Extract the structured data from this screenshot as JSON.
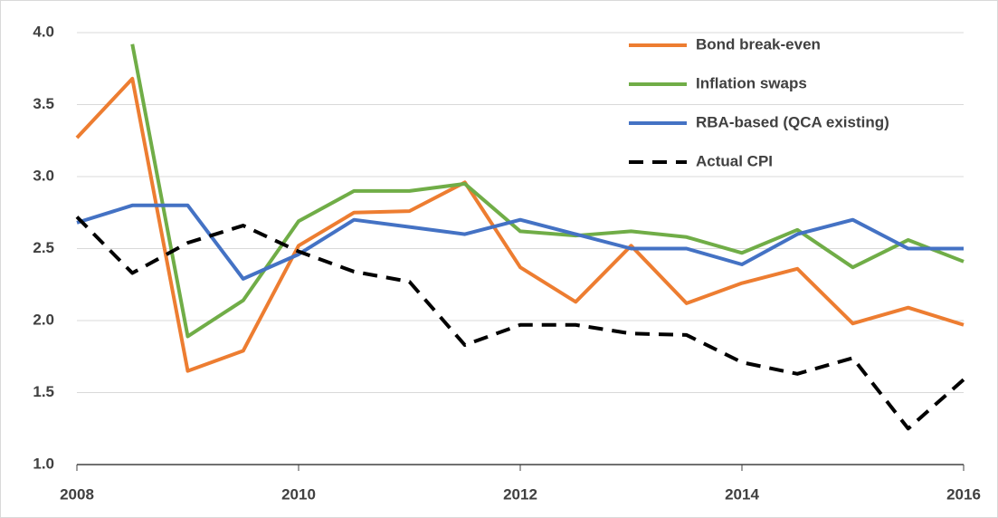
{
  "chart_data": {
    "type": "line",
    "x": [
      2008,
      2008.5,
      2009,
      2009.5,
      2010,
      2010.5,
      2011,
      2011.5,
      2012,
      2012.5,
      2013,
      2013.5,
      2014,
      2014.5,
      2015,
      2015.5,
      2016
    ],
    "series": [
      {
        "name": "Bond break-even",
        "color": "#ed7d31",
        "dashed": false,
        "values": [
          3.27,
          3.68,
          1.65,
          1.79,
          2.52,
          2.75,
          2.76,
          2.96,
          2.37,
          2.13,
          2.52,
          2.12,
          2.26,
          2.36,
          1.98,
          2.09,
          1.97
        ]
      },
      {
        "name": "Inflation swaps",
        "color": "#70ad47",
        "dashed": false,
        "values": [
          null,
          3.92,
          1.89,
          2.14,
          2.69,
          2.9,
          2.9,
          2.95,
          2.62,
          2.59,
          2.62,
          2.58,
          2.47,
          2.63,
          2.37,
          2.56,
          2.41
        ]
      },
      {
        "name": "RBA-based (QCA existing)",
        "color": "#4472c4",
        "dashed": false,
        "values": [
          2.68,
          2.8,
          2.8,
          2.29,
          2.46,
          2.7,
          2.65,
          2.6,
          2.7,
          2.6,
          2.5,
          2.5,
          2.39,
          2.6,
          2.7,
          2.5,
          2.5
        ]
      },
      {
        "name": "Actual CPI",
        "color": "#000000",
        "dashed": true,
        "values": [
          2.72,
          2.33,
          2.54,
          2.66,
          2.48,
          2.34,
          2.27,
          1.83,
          1.97,
          1.97,
          1.91,
          1.9,
          1.71,
          1.63,
          1.74,
          1.25,
          1.59
        ]
      }
    ],
    "xlim": [
      2008,
      2016
    ],
    "xticks": [
      2008,
      2010,
      2012,
      2014,
      2016
    ],
    "ylim": [
      1,
      4
    ],
    "yticks": [
      {
        "value": 1,
        "label": "1.0"
      },
      {
        "value": 1.5,
        "label": "1.5"
      },
      {
        "value": 2,
        "label": "2.0"
      },
      {
        "value": 2.5,
        "label": "2.5"
      },
      {
        "value": 3,
        "label": "3.0"
      },
      {
        "value": 3.5,
        "label": "3.5"
      },
      {
        "value": 4,
        "label": "4.0"
      }
    ],
    "grid": true,
    "legend": "top-right"
  }
}
